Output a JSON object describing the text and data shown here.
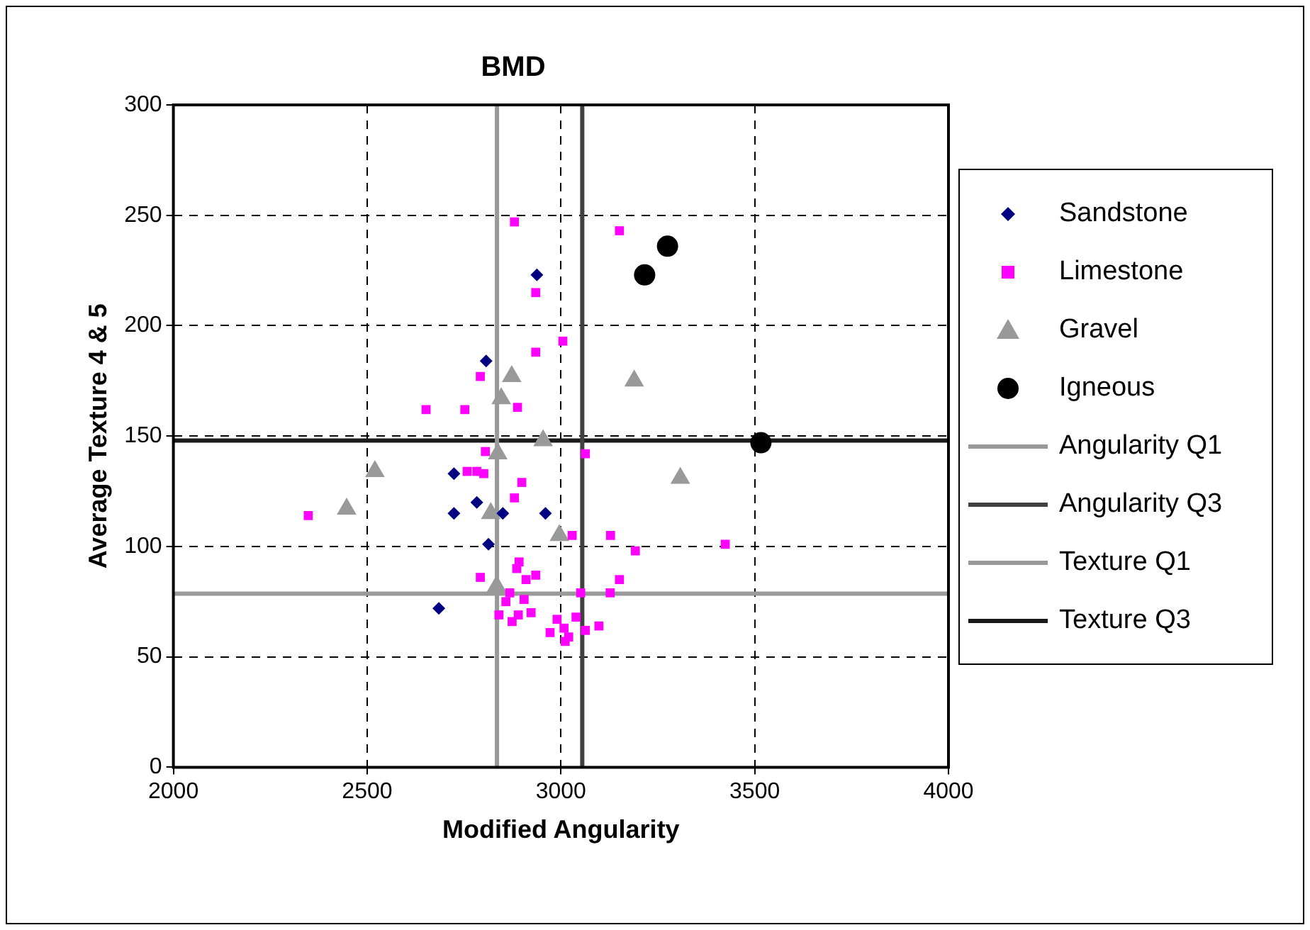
{
  "chart_data": {
    "type": "scatter",
    "title": "BMD",
    "xlabel": "Modified Angularity",
    "ylabel": "Average Texture 4 & 5",
    "xlim": [
      2000,
      4000
    ],
    "xticks": [
      2000,
      2500,
      3000,
      3500,
      4000
    ],
    "ylim": [
      0,
      300
    ],
    "yticks": [
      0,
      50,
      100,
      150,
      200,
      250,
      300
    ],
    "grid": true,
    "legend": "right",
    "series": [
      {
        "name": "Sandstone",
        "color": "#000080",
        "marker": "diamond",
        "x": [
          2938,
          2807,
          2724,
          2783,
          2724,
          2850,
          2960,
          2813,
          2685
        ],
        "values": [
          223,
          184,
          133,
          120,
          115,
          115,
          115,
          101,
          72
        ]
      },
      {
        "name": "Limestone",
        "color": "#ff00ff",
        "marker": "square",
        "x": [
          2880,
          3151,
          2935,
          3005,
          2935,
          2792,
          2888,
          2652,
          2752,
          2805,
          3063,
          2348,
          3029,
          3128,
          3192,
          3424,
          3151,
          3051,
          3127,
          2758,
          2783,
          2801,
          2899,
          2880,
          2892,
          2886,
          2935,
          2910,
          2792,
          2868,
          2858,
          2905,
          2923,
          2840,
          2890,
          2874,
          2990,
          3039,
          3008,
          2972,
          3063,
          3098,
          3020,
          3011
        ],
        "values": [
          247,
          243,
          215,
          193,
          188,
          177,
          163,
          162,
          162,
          143,
          142,
          114,
          105,
          105,
          98,
          101,
          85,
          79,
          79,
          134,
          134,
          133,
          129,
          122,
          93,
          90,
          87,
          85,
          86,
          79,
          75,
          76,
          70,
          69,
          69,
          66,
          67,
          68,
          63,
          61,
          62,
          64,
          59,
          57
        ]
      },
      {
        "name": "Gravel",
        "color": "#999999",
        "marker": "triangle",
        "x": [
          2873,
          3189,
          2846,
          2954,
          2837,
          2520,
          2447,
          3308,
          2996,
          2819,
          2834
        ],
        "values": [
          177,
          175,
          167,
          148,
          142,
          134,
          117,
          131,
          105,
          115,
          82
        ]
      },
      {
        "name": "Igneous",
        "color": "#000000",
        "marker": "circle",
        "x": [
          3275,
          3216,
          3516
        ],
        "values": [
          236,
          223,
          147
        ]
      },
      {
        "name": "Angularity Q1",
        "type": "line",
        "color": "#999999",
        "marker": "none",
        "x": [
          2835,
          2835
        ],
        "values": [
          0,
          300
        ]
      },
      {
        "name": "Angularity Q3",
        "type": "line",
        "color": "#404040",
        "marker": "none",
        "x": [
          3055,
          3055
        ],
        "values": [
          0,
          300
        ]
      },
      {
        "name": "Texture Q1",
        "type": "line",
        "color": "#999999",
        "marker": "none",
        "x": [
          2000,
          4000
        ],
        "values": [
          78.6,
          78.6
        ]
      },
      {
        "name": "Texture Q3",
        "type": "line",
        "color": "#1a1a1a",
        "marker": "none",
        "x": [
          2000,
          4000
        ],
        "values": [
          148,
          148
        ]
      }
    ]
  }
}
